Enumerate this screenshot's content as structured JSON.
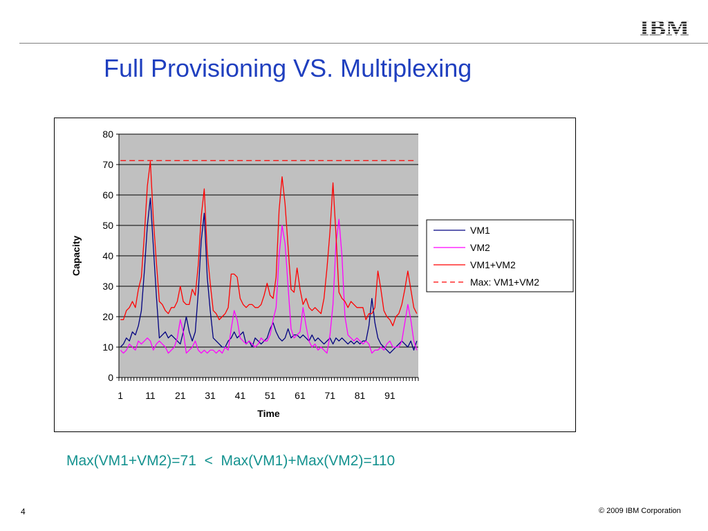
{
  "slide": {
    "title": "Full Provisioning VS. Multiplexing",
    "caption": "Max(VM1+VM2)=71  <  Max(VM1)+Max(VM2)=110",
    "page_number": "4",
    "copyright": "© 2009 IBM Corporation",
    "logo_text": "IBM",
    "title_color": "#1f3fbf",
    "caption_color": "#14928f"
  },
  "chart_data": {
    "type": "line",
    "xlabel": "Time",
    "ylabel": "Capacity",
    "ylim": [
      0,
      80
    ],
    "yticks": [
      0,
      10,
      20,
      30,
      40,
      50,
      60,
      70,
      80
    ],
    "xticks": [
      1,
      11,
      21,
      31,
      41,
      51,
      61,
      71,
      81,
      91
    ],
    "x_range": [
      1,
      100
    ],
    "grid": "horizontal",
    "plot_background": "#c0c0c0",
    "legend_position": "right",
    "series": [
      {
        "name": "VM1",
        "color": "#000080",
        "dash": false,
        "values": [
          10,
          11,
          13,
          12,
          15,
          14,
          17,
          22,
          35,
          50,
          59,
          43,
          27,
          13,
          14,
          15,
          13,
          14,
          13,
          12,
          11,
          15,
          20,
          15,
          12,
          15,
          28,
          45,
          54,
          33,
          22,
          13,
          12,
          11,
          10,
          10,
          12,
          13,
          15,
          13,
          14,
          15,
          11,
          12,
          10,
          13,
          12,
          11,
          12,
          13,
          16,
          18,
          15,
          13,
          12,
          13,
          16,
          13,
          14,
          14,
          13,
          14,
          13,
          12,
          14,
          12,
          13,
          12,
          11,
          12,
          13,
          11,
          13,
          12,
          13,
          12,
          11,
          12,
          11,
          12,
          11,
          12,
          12,
          17,
          26,
          18,
          13,
          11,
          10,
          9,
          8,
          9,
          10,
          11,
          12,
          11,
          10,
          12,
          9,
          12
        ]
      },
      {
        "name": "VM2",
        "color": "#ff00ff",
        "dash": false,
        "values": [
          9,
          8,
          9,
          11,
          10,
          9,
          12,
          11,
          12,
          13,
          12,
          9,
          11,
          12,
          11,
          10,
          8,
          9,
          10,
          13,
          19,
          15,
          8,
          9,
          10,
          12,
          9,
          8,
          9,
          8,
          9,
          9,
          8,
          9,
          8,
          10,
          9,
          16,
          22,
          19,
          13,
          12,
          11,
          12,
          11,
          10,
          11,
          13,
          12,
          12,
          14,
          19,
          23,
          40,
          50,
          44,
          30,
          16,
          13,
          14,
          15,
          23,
          17,
          12,
          10,
          11,
          9,
          10,
          9,
          8,
          14,
          24,
          44,
          52,
          40,
          20,
          14,
          13,
          12,
          13,
          12,
          11,
          12,
          11,
          8,
          9,
          9,
          10,
          9,
          11,
          12,
          10,
          10,
          10,
          12,
          18,
          24,
          19,
          12,
          9
        ]
      },
      {
        "name": "VM1+VM2",
        "color": "#ff0000",
        "dash": false,
        "values": [
          19,
          19,
          22,
          23,
          25,
          23,
          29,
          33,
          47,
          63,
          71,
          52,
          38,
          25,
          24,
          22,
          21,
          23,
          23,
          25,
          30,
          25,
          24,
          24,
          29,
          27,
          37,
          53,
          62,
          41,
          31,
          22,
          21,
          19,
          20,
          21,
          23,
          34,
          34,
          33,
          26,
          24,
          23,
          24,
          24,
          23,
          23,
          24,
          27,
          31,
          27,
          26,
          33,
          55,
          66,
          57,
          43,
          29,
          28,
          36,
          29,
          24,
          26,
          23,
          22,
          23,
          22,
          21,
          26,
          36,
          48,
          64,
          47,
          28,
          26,
          25,
          23,
          25,
          24,
          23,
          23,
          23,
          19,
          21,
          21,
          23,
          35,
          29,
          22,
          20,
          19,
          17,
          20,
          21,
          24,
          29,
          35,
          29,
          23,
          21
        ]
      },
      {
        "name": "Max: VM1+VM2",
        "color": "#ff0000",
        "dash": true,
        "constant": 71.3
      }
    ]
  }
}
